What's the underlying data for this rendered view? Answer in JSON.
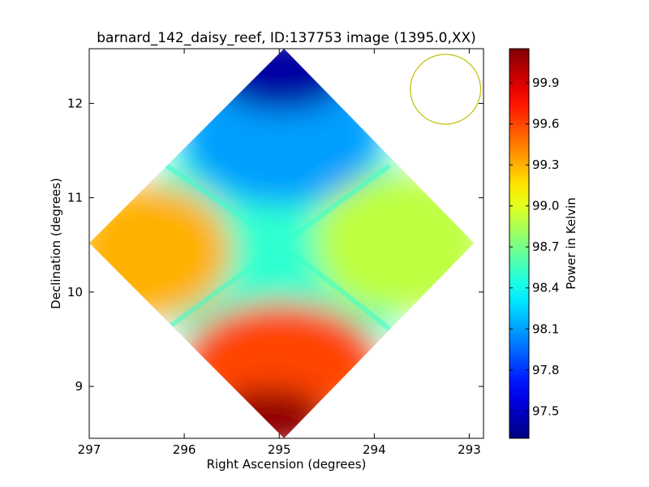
{
  "chart_data": {
    "type": "heatmap",
    "title": "barnard_142_daisy_reef, ID:137753 image (1395.0,XX)",
    "xlabel": "Right Ascension (degrees)",
    "ylabel": "Declination (degrees)",
    "xlim": [
      297.0,
      292.85
    ],
    "ylim": [
      8.45,
      12.58
    ],
    "x_inverted": true,
    "xticks": [
      {
        "value": 297,
        "label": "297"
      },
      {
        "value": 296,
        "label": "296"
      },
      {
        "value": 295,
        "label": "295"
      },
      {
        "value": 294,
        "label": "294"
      },
      {
        "value": 293,
        "label": "293"
      }
    ],
    "yticks": [
      {
        "value": 9,
        "label": "9"
      },
      {
        "value": 10,
        "label": "10"
      },
      {
        "value": 11,
        "label": "11"
      },
      {
        "value": 12,
        "label": "12"
      }
    ],
    "map_extent": {
      "ra_min": 292.95,
      "ra_max": 297.0,
      "dec_min": 8.45,
      "dec_max": 12.58
    },
    "map_center": {
      "ra": 294.95,
      "dec": 10.52
    },
    "map_shape": "diamond",
    "approx_field_levels": [
      {
        "region": "top",
        "value": 97.4
      },
      {
        "region": "upper-center",
        "value": 98.1
      },
      {
        "region": "left",
        "value": 99.3
      },
      {
        "region": "right",
        "value": 98.9
      },
      {
        "region": "center",
        "value": 98.5
      },
      {
        "region": "lower-center",
        "value": 99.6
      },
      {
        "region": "bottom",
        "value": 100.1
      }
    ],
    "beam_circle": {
      "ra_center": 293.25,
      "dec_center": 12.15,
      "radius_deg": 0.37,
      "color": "#bfbf00"
    },
    "colorbar": {
      "label": "Power in Kelvin",
      "vmin": 97.3,
      "vmax": 100.15,
      "colormap": "jet",
      "ticks": [
        {
          "value": 97.5,
          "label": "97.5"
        },
        {
          "value": 97.8,
          "label": "97.8"
        },
        {
          "value": 98.1,
          "label": "98.1"
        },
        {
          "value": 98.4,
          "label": "98.4"
        },
        {
          "value": 98.7,
          "label": "98.7"
        },
        {
          "value": 99.0,
          "label": "99.0"
        },
        {
          "value": 99.3,
          "label": "99.3"
        },
        {
          "value": 99.6,
          "label": "99.6"
        },
        {
          "value": 99.9,
          "label": "99.9"
        }
      ]
    }
  }
}
